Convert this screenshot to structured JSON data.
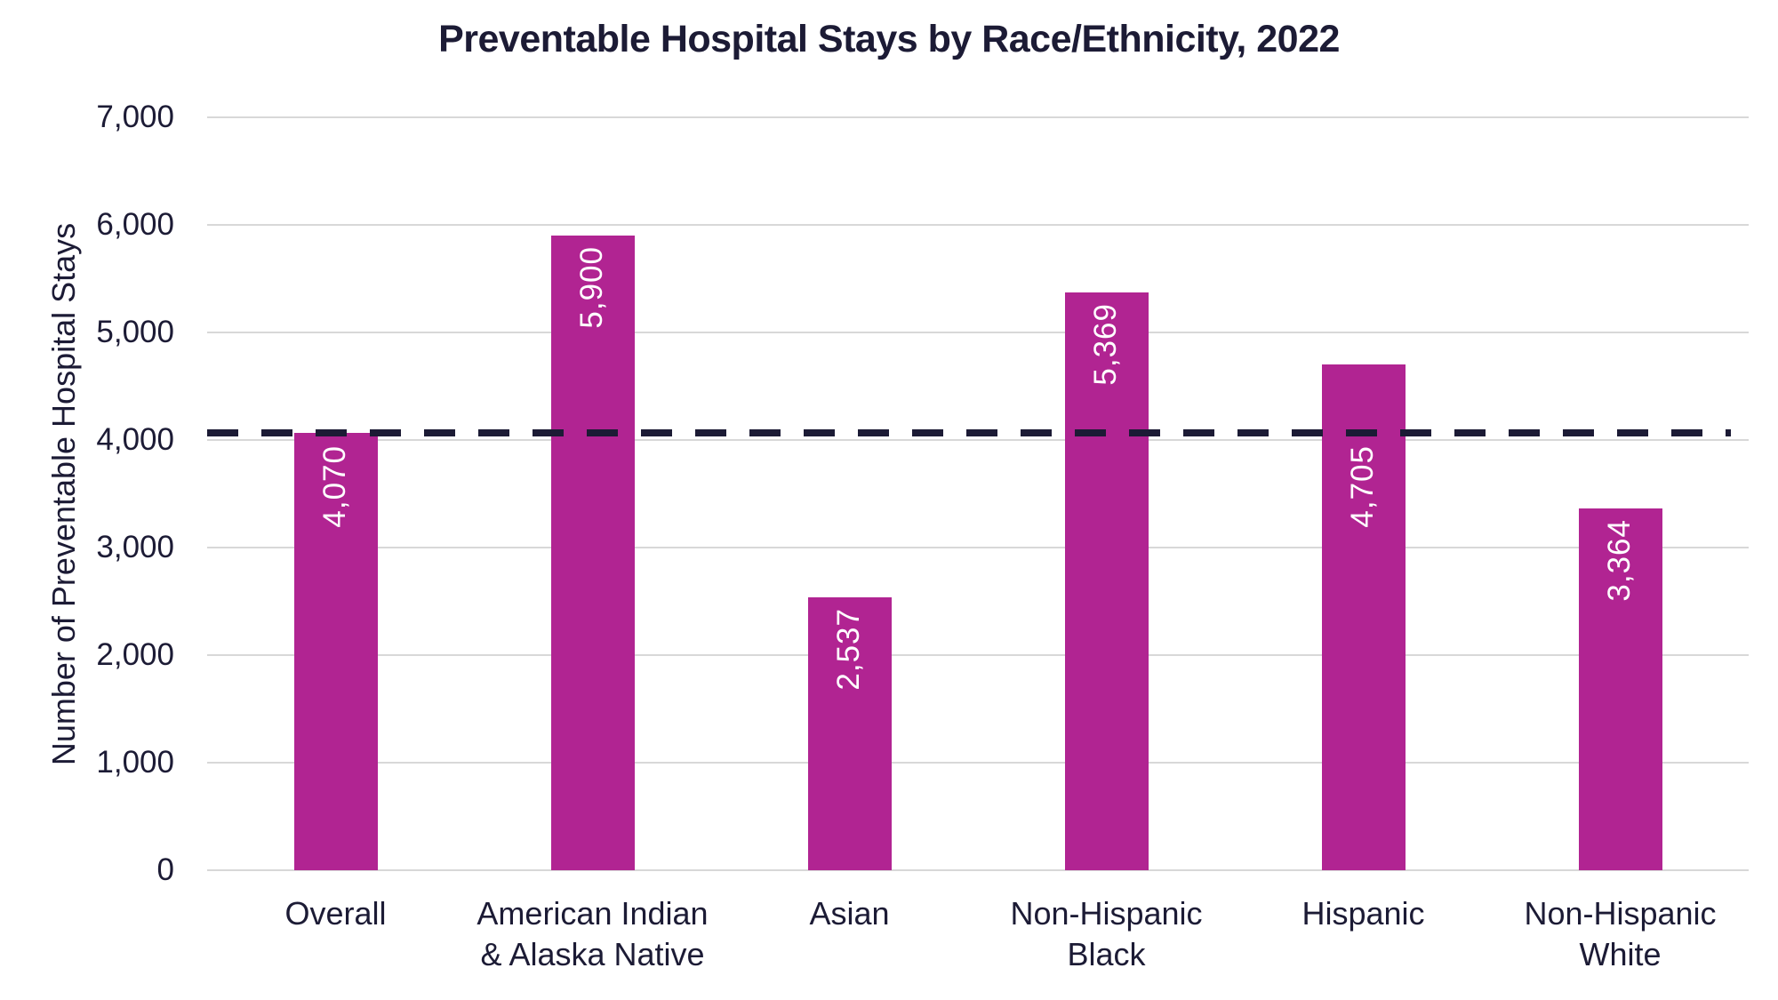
{
  "chart_data": {
    "type": "bar",
    "title": "Preventable Hospital Stays by Race/Ethnicity, 2022",
    "ylabel": "Number of Preventable Hospital Stays",
    "xlabel": "",
    "categories": [
      "Overall",
      "American Indian\n& Alaska Native",
      "Asian",
      "Non-Hispanic\nBlack",
      "Hispanic",
      "Non-Hispanic\nWhite"
    ],
    "values": [
      4070,
      5900,
      2537,
      5369,
      4705,
      3364
    ],
    "value_labels": [
      "4,070",
      "5,900",
      "2,537",
      "5,369",
      "4,705",
      "3,364"
    ],
    "ylim": [
      0,
      7000
    ],
    "ytick_step": 1000,
    "ytick_labels": [
      "0",
      "1,000",
      "2,000",
      "3,000",
      "4,000",
      "5,000",
      "6,000",
      "7,000"
    ],
    "grid": "horizontal",
    "legend": "none",
    "reference_line": {
      "value": 4070,
      "style": "dashed"
    },
    "colors": {
      "bar": "#B12492",
      "reference_line": "#1C1B35",
      "text": "#1C1B35",
      "gridline": "#D8D8D8",
      "value_label": "#FFFFFF",
      "background": "#FFFFFF"
    }
  }
}
